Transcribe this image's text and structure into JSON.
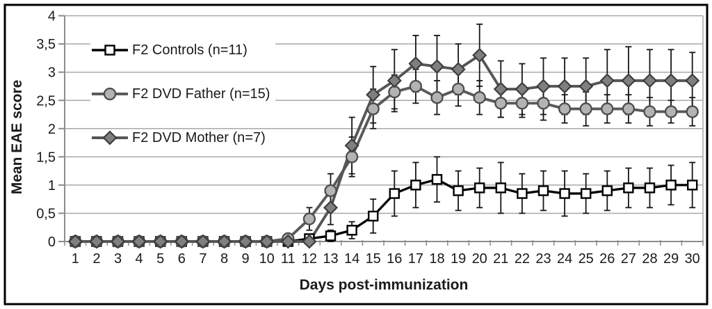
{
  "chart_data": {
    "type": "line",
    "title": "",
    "xlabel": "Days post-immunization",
    "ylabel": "Mean EAE score",
    "x": [
      1,
      2,
      3,
      4,
      5,
      6,
      7,
      8,
      9,
      10,
      11,
      12,
      13,
      14,
      15,
      16,
      17,
      18,
      19,
      20,
      21,
      22,
      23,
      24,
      25,
      26,
      27,
      28,
      29,
      30
    ],
    "ylim": [
      0,
      4
    ],
    "y_tick_labels": [
      "0",
      "0,5",
      "1",
      "1,5",
      "2",
      "2,5",
      "3",
      "3,5",
      "4"
    ],
    "grid": true,
    "legend_position": "top-left",
    "error_bars": true,
    "series": [
      {
        "name": "F2 Controls (n=11)",
        "marker": "square",
        "line_color": "#000000",
        "marker_fill": "#ffffff",
        "marker_stroke": "#000000",
        "values": [
          0,
          0,
          0,
          0,
          0,
          0,
          0,
          0,
          0,
          0,
          0,
          0.05,
          0.1,
          0.2,
          0.45,
          0.85,
          1.0,
          1.1,
          0.9,
          0.95,
          0.95,
          0.85,
          0.9,
          0.85,
          0.85,
          0.9,
          0.95,
          0.95,
          1.0,
          1.0
        ],
        "errors": [
          0,
          0,
          0,
          0,
          0,
          0,
          0,
          0,
          0,
          0,
          0,
          0.05,
          0.1,
          0.15,
          0.3,
          0.4,
          0.4,
          0.4,
          0.35,
          0.35,
          0.45,
          0.35,
          0.35,
          0.4,
          0.35,
          0.35,
          0.35,
          0.35,
          0.35,
          0.4
        ]
      },
      {
        "name": "F2 DVD Father (n=15)",
        "marker": "circle",
        "line_color": "#5a5a5a",
        "marker_fill": "#b3b3b3",
        "marker_stroke": "#4d4d4d",
        "values": [
          0,
          0,
          0,
          0,
          0,
          0,
          0,
          0,
          0,
          0,
          0.05,
          0.4,
          0.9,
          1.5,
          2.35,
          2.65,
          2.75,
          2.55,
          2.7,
          2.55,
          2.45,
          2.45,
          2.45,
          2.35,
          2.35,
          2.35,
          2.35,
          2.3,
          2.3,
          2.3
        ],
        "errors": [
          0,
          0,
          0,
          0,
          0,
          0,
          0,
          0,
          0,
          0,
          0.08,
          0.2,
          0.3,
          0.35,
          0.35,
          0.3,
          0.3,
          0.3,
          0.3,
          0.3,
          0.25,
          0.25,
          0.3,
          0.25,
          0.3,
          0.25,
          0.25,
          0.25,
          0.2,
          0.25
        ]
      },
      {
        "name": "F2 DVD Mother (n=7)",
        "marker": "diamond",
        "line_color": "#565656",
        "marker_fill": "#7f7f7f",
        "marker_stroke": "#3d3d3d",
        "values": [
          0,
          0,
          0,
          0,
          0,
          0,
          0,
          0,
          0,
          0,
          0,
          0,
          0.6,
          1.7,
          2.6,
          2.85,
          3.15,
          3.1,
          3.05,
          3.3,
          2.7,
          2.7,
          2.75,
          2.75,
          2.75,
          2.85,
          2.85,
          2.85,
          2.85,
          2.85
        ],
        "errors": [
          0,
          0,
          0,
          0,
          0,
          0,
          0,
          0,
          0,
          0,
          0,
          0,
          0.3,
          0.5,
          0.5,
          0.55,
          0.5,
          0.55,
          0.45,
          0.55,
          0.5,
          0.45,
          0.5,
          0.5,
          0.5,
          0.55,
          0.6,
          0.55,
          0.55,
          0.5
        ]
      }
    ],
    "styles": {
      "gridline_color": "#a8a8a8",
      "axis_color": "#8c8c8c",
      "error_bar_color": "#161616",
      "text_color": "#1a1a1a",
      "figure_border_color": "#000000",
      "background": "#ffffff"
    }
  }
}
